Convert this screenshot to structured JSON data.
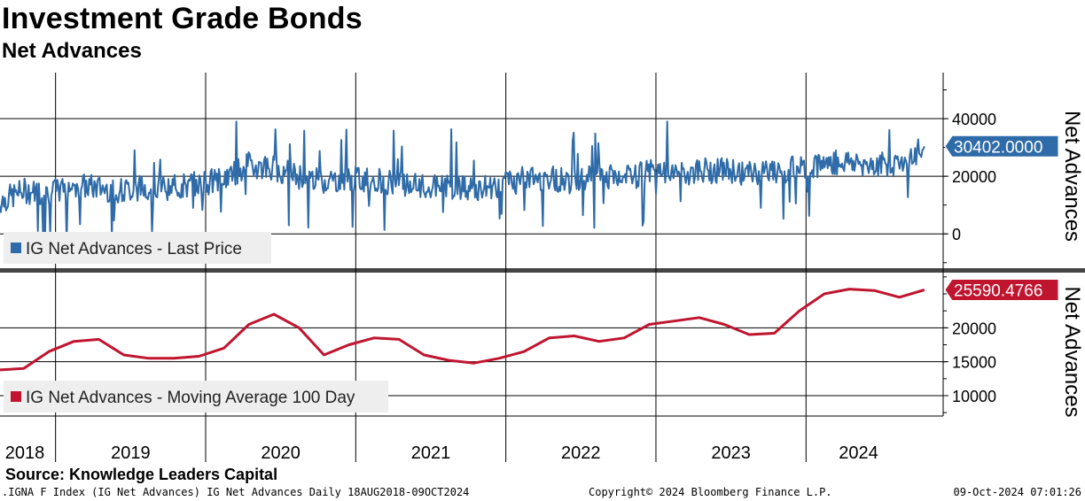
{
  "header": {
    "title": "Investment Grade Bonds",
    "subtitle": "Net Advances"
  },
  "footer": {
    "source": "Source: Knowledge Leaders Capital",
    "security": ".IGNA F Index (IG Net Advances) IG Net Advances  Daily 18AUG2018-09OCT2024",
    "copyright": "Copyright© 2024 Bloomberg Finance L.P.",
    "timestamp": "09-Oct-2024 07:01:26"
  },
  "colors": {
    "top_series": "#2e6ba8",
    "bottom_series": "#c0152f",
    "grid": "#000000",
    "legend_bg": "#eeeeee"
  },
  "chart_data": [
    {
      "type": "line",
      "panel": "top",
      "ylabel": "Net Advances",
      "yticks": [
        0,
        20000,
        40000
      ],
      "ylim": [
        -11000,
        56000
      ],
      "xlim": [
        "2018-08-18",
        "2024-10-09"
      ],
      "xticks": [
        "2018",
        "2019",
        "2020",
        "2021",
        "2022",
        "2023",
        "2024"
      ],
      "last_value_label": "30402.0000",
      "legend": "IG Net Advances - Last Price",
      "series": [
        {
          "name": "IG Net Advances - Last Price",
          "x": [
            "2018-08",
            "2018-10",
            "2018-12",
            "2019-02",
            "2019-04",
            "2019-06",
            "2019-08",
            "2019-10",
            "2019-12",
            "2020-02",
            "2020-04",
            "2020-06",
            "2020-08",
            "2020-10",
            "2020-12",
            "2021-02",
            "2021-04",
            "2021-06",
            "2021-08",
            "2021-10",
            "2021-12",
            "2022-02",
            "2022-04",
            "2022-06",
            "2022-08",
            "2022-10",
            "2022-12",
            "2023-02",
            "2023-04",
            "2023-06",
            "2023-08",
            "2023-10",
            "2023-12",
            "2024-02",
            "2024-04",
            "2024-06",
            "2024-08",
            "2024-10"
          ],
          "values": [
            11000,
            15000,
            14000,
            17000,
            16000,
            15000,
            16500,
            16000,
            17500,
            19000,
            24000,
            23000,
            20000,
            18500,
            19000,
            19000,
            17500,
            16000,
            16500,
            15500,
            17000,
            19000,
            19500,
            18000,
            20000,
            19000,
            21500,
            20000,
            22000,
            22000,
            21000,
            21500,
            23000,
            24500,
            25000,
            24000,
            24500,
            30402
          ]
        }
      ]
    },
    {
      "type": "line",
      "panel": "bottom",
      "ylabel": "Net Advances",
      "yticks": [
        10000,
        15000,
        20000
      ],
      "ylim": [
        7000,
        28000
      ],
      "xlim": [
        "2018-08-18",
        "2024-10-09"
      ],
      "xticks": [
        "2018",
        "2019",
        "2020",
        "2021",
        "2022",
        "2023",
        "2024"
      ],
      "last_value_label": "25590.4766",
      "legend": "IG Net Advances - Moving Average 100 Day",
      "series": [
        {
          "name": "IG Net Advances - Moving Average 100 Day",
          "x": [
            "2018-08",
            "2018-10",
            "2018-12",
            "2019-02",
            "2019-04",
            "2019-06",
            "2019-08",
            "2019-10",
            "2019-12",
            "2020-02",
            "2020-04",
            "2020-06",
            "2020-08",
            "2020-10",
            "2020-12",
            "2021-02",
            "2021-04",
            "2021-06",
            "2021-08",
            "2021-10",
            "2021-12",
            "2022-02",
            "2022-04",
            "2022-06",
            "2022-08",
            "2022-10",
            "2022-12",
            "2023-02",
            "2023-04",
            "2023-06",
            "2023-08",
            "2023-10",
            "2023-12",
            "2024-02",
            "2024-04",
            "2024-06",
            "2024-08",
            "2024-10"
          ],
          "values": [
            13800,
            14000,
            16500,
            18000,
            18300,
            16000,
            15500,
            15500,
            15800,
            17000,
            20500,
            22000,
            20000,
            16000,
            17500,
            18500,
            18300,
            16000,
            15200,
            14800,
            15500,
            16500,
            18500,
            18800,
            18000,
            18500,
            20500,
            21000,
            21500,
            20500,
            19000,
            19200,
            22500,
            25000,
            25700,
            25500,
            24500,
            25590
          ]
        }
      ]
    }
  ]
}
